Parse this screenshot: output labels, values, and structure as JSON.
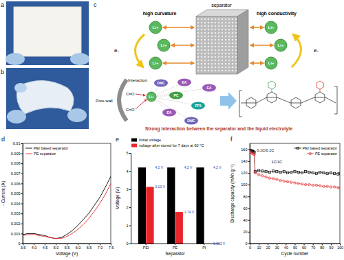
{
  "panel_labels": [
    "a",
    "b",
    "c",
    "d",
    "e",
    "f"
  ],
  "diagram": {
    "separator_label": "separator",
    "left_label": "high curvature",
    "right_label": "high conductivity",
    "ion": "Li+",
    "electron": "e-",
    "pore_wall": "Pore wall",
    "interaction": "Interaction",
    "groups": [
      "C=O",
      "C=O"
    ],
    "molecules": [
      "DMC",
      "EA",
      "EA",
      "PC",
      "PF6",
      "EA",
      "DMC"
    ],
    "caption": "Strong interaction between the separator and the liquid electrolyte"
  },
  "chart_data": [
    {
      "type": "line",
      "x_label": "Voltage (V)",
      "y_label": "- Current (A)",
      "x": [
        3.5,
        3.75,
        4.0,
        4.25,
        4.5,
        4.75,
        5.0,
        5.25,
        5.5,
        5.75,
        6.0,
        6.25,
        6.5,
        6.75,
        7.0,
        7.25,
        7.5
      ],
      "series": [
        {
          "name": "PEI based separator",
          "color": "#000000",
          "values": [
            0.0009,
            0.001,
            0.001,
            0.0009,
            0.0008,
            0.0006,
            0.0005,
            0.0006,
            0.0009,
            0.0013,
            0.0018,
            0.0024,
            0.003,
            0.0038,
            0.0046,
            0.0056,
            0.0067
          ]
        },
        {
          "name": "PE  separator",
          "color": "#e8262a",
          "values": [
            0.0008,
            0.0009,
            0.0009,
            0.0008,
            0.0007,
            0.0006,
            0.0005,
            0.0005,
            0.0007,
            0.001,
            0.0014,
            0.0019,
            0.0025,
            0.0032,
            0.004,
            0.0049,
            0.006
          ]
        }
      ],
      "xlim": [
        3.5,
        7.5
      ],
      "xticks": [
        3.5,
        {
          "value": 4,
          "label": "4.0"
        },
        4.5,
        {
          "value": 5,
          "label": "5.0"
        },
        5.5,
        {
          "value": 6,
          "label": "6.0"
        },
        6.5,
        {
          "value": 7,
          "label": "7.0"
        },
        7.5
      ],
      "ylim": [
        0,
        0.01
      ],
      "yticks": [
        0,
        0.001,
        0.002,
        0.003,
        0.004,
        0.005,
        0.006,
        0.007,
        0.008,
        0.009,
        0.01
      ],
      "legend": "upper left",
      "line_style": "solid"
    },
    {
      "type": "bar",
      "x_label": "Separator",
      "y_label": "Voltage (V)",
      "categories": [
        "PEI",
        "PE",
        "PI"
      ],
      "series": [
        {
          "name": "Initial voltage",
          "color": "#000000",
          "values": [
            4.2,
            4.2,
            4.2
          ],
          "value_labels": [
            "4.2 V",
            "4.2 V",
            "4.2 V"
          ]
        },
        {
          "name": "voltage after stored for 7 days at 60 °C",
          "color": "#e8262a",
          "values": [
            3.13,
            1.74,
            0.003
          ],
          "value_labels": [
            "3.13 V",
            "1.74 V",
            "0.003 V"
          ]
        }
      ],
      "ylim": [
        0,
        5
      ],
      "yticks": [
        0,
        1,
        2,
        3,
        4,
        5
      ],
      "data_labels": true,
      "legend": "top"
    },
    {
      "type": "line",
      "x_label": "Cycle number",
      "y_label": "Discharge capacity (mAh g⁻¹)",
      "x": [
        1,
        2,
        3,
        4,
        5,
        6,
        10,
        14,
        18,
        22,
        26,
        30,
        34,
        38,
        42,
        46,
        50,
        54,
        58,
        62,
        66,
        70,
        74,
        78,
        82,
        86,
        90,
        94,
        98,
        100
      ],
      "series": [
        {
          "name": "PEI based separator",
          "color": "#000000",
          "marker": "square",
          "values": [
            158,
            157,
            157,
            156,
            155,
            122,
            124,
            123,
            122,
            121,
            123,
            122,
            121,
            122,
            120,
            121,
            122,
            121,
            120,
            122,
            121,
            120,
            119,
            121,
            120,
            119,
            120,
            119,
            118,
            119
          ]
        },
        {
          "name": "PE separator",
          "color": "#e8262a",
          "marker": "circle",
          "values": [
            155,
            154,
            153,
            152,
            151,
            120,
            117,
            115,
            113,
            111,
            110,
            109,
            107,
            106,
            105,
            104,
            103,
            102,
            101,
            100,
            100,
            99,
            99,
            98,
            97,
            97,
            96,
            96,
            95,
            94
          ]
        }
      ],
      "xlim": [
        0,
        100
      ],
      "xticks": [
        0,
        10,
        20,
        30,
        40,
        50,
        60,
        70,
        80,
        90,
        100
      ],
      "ylim": [
        0,
        170
      ],
      "yticks": [
        0,
        20,
        40,
        60,
        80,
        100,
        120,
        140,
        160
      ],
      "annotations": [
        "0.1C/0.1C",
        "1C/1C"
      ],
      "legend": "upper right",
      "line_style": "solid"
    }
  ]
}
